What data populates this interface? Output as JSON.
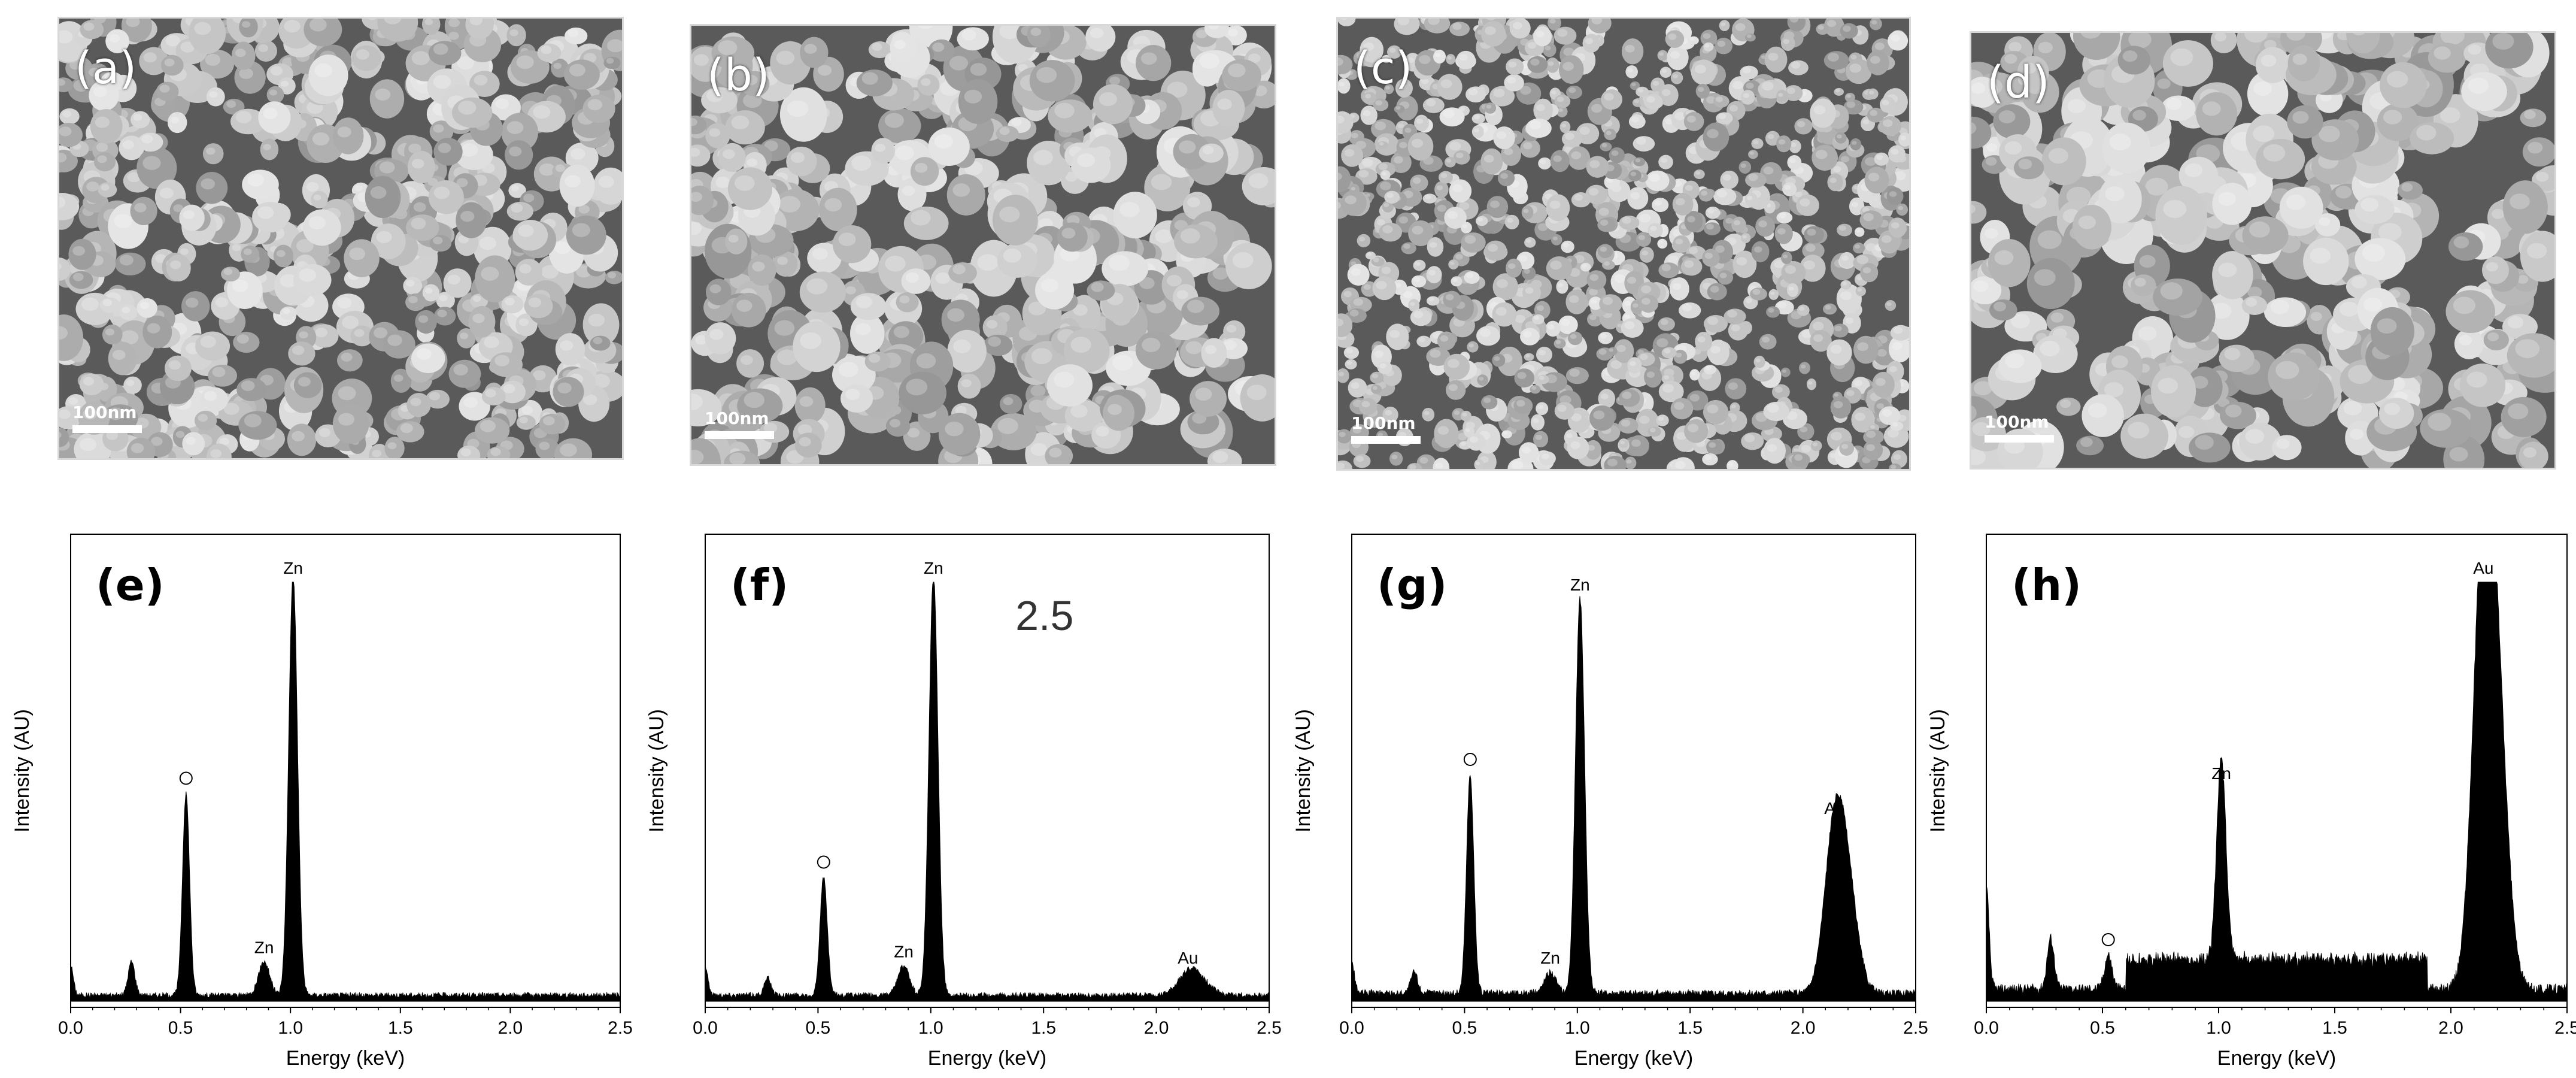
{
  "sem_panels": [
    {
      "label": "(a)",
      "scale": "100nm"
    },
    {
      "label": "(b)",
      "scale": "100nm"
    },
    {
      "label": "(c)",
      "scale": "100nm"
    },
    {
      "label": "(d)",
      "scale": "100nm"
    }
  ],
  "chart_data": [
    {
      "type": "area",
      "title": "(e)",
      "xlabel": "Energy (keV)",
      "ylabel": "Intensity (AU)",
      "xlim": [
        0,
        2.5
      ],
      "ylim": [
        0,
        100
      ],
      "xticks": [
        "0.0",
        "0.5",
        "1.0",
        "1.5",
        "2.0",
        "2.5"
      ],
      "peaks": [
        {
          "x": 0.0,
          "y": 7,
          "w": 0.012,
          "label": ""
        },
        {
          "x": 0.277,
          "y": 8,
          "w": 0.015,
          "label": ""
        },
        {
          "x": 0.525,
          "y": 48,
          "w": 0.016,
          "label": "O"
        },
        {
          "x": 0.88,
          "y": 8,
          "w": 0.025,
          "label": "Zn"
        },
        {
          "x": 1.012,
          "y": 100,
          "w": 0.02,
          "label": "Zn"
        }
      ],
      "baseline": 1.5,
      "annotation": ""
    },
    {
      "type": "area",
      "title": "(f)",
      "xlabel": "Energy (keV)",
      "ylabel": "Intensity (AU)",
      "xlim": [
        0,
        2.5
      ],
      "ylim": [
        0,
        100
      ],
      "xticks": [
        "0.0",
        "0.5",
        "1.0",
        "1.5",
        "2.0",
        "2.5"
      ],
      "peaks": [
        {
          "x": 0.0,
          "y": 7,
          "w": 0.012,
          "label": ""
        },
        {
          "x": 0.277,
          "y": 4,
          "w": 0.015,
          "label": ""
        },
        {
          "x": 0.525,
          "y": 28,
          "w": 0.016,
          "label": "O"
        },
        {
          "x": 0.88,
          "y": 7,
          "w": 0.025,
          "label": "Zn"
        },
        {
          "x": 1.012,
          "y": 100,
          "w": 0.02,
          "label": "Zn"
        },
        {
          "x": 2.14,
          "y": 5,
          "w": 0.045,
          "label": "Au"
        }
      ],
      "baseline": 1.5,
      "annotation": "2.5"
    },
    {
      "type": "area",
      "title": "(g)",
      "xlabel": "Energy (keV)",
      "ylabel": "Intensity (AU)",
      "xlim": [
        0,
        2.5
      ],
      "ylim": [
        0,
        100
      ],
      "xticks": [
        "0.0",
        "0.5",
        "1.0",
        "1.5",
        "2.0",
        "2.5"
      ],
      "peaks": [
        {
          "x": 0.0,
          "y": 7,
          "w": 0.012,
          "label": ""
        },
        {
          "x": 0.277,
          "y": 5,
          "w": 0.015,
          "label": ""
        },
        {
          "x": 0.525,
          "y": 52,
          "w": 0.016,
          "label": "O"
        },
        {
          "x": 0.88,
          "y": 5,
          "w": 0.025,
          "label": "Zn"
        },
        {
          "x": 1.012,
          "y": 94,
          "w": 0.02,
          "label": "Zn"
        },
        {
          "x": 2.14,
          "y": 37,
          "w": 0.045,
          "label": "Au"
        }
      ],
      "baseline": 2,
      "annotation": ""
    },
    {
      "type": "area",
      "title": "(h)",
      "xlabel": "Energy (keV)",
      "ylabel": "Intensity (AU)",
      "xlim": [
        0,
        2.5
      ],
      "ylim": [
        0,
        100
      ],
      "xticks": [
        "0.0",
        "0.5",
        "1.0",
        "1.5",
        "2.0",
        "2.5"
      ],
      "peaks": [
        {
          "x": 0.0,
          "y": 24,
          "w": 0.012,
          "label": ""
        },
        {
          "x": 0.277,
          "y": 12,
          "w": 0.015,
          "label": ""
        },
        {
          "x": 0.525,
          "y": 8,
          "w": 0.016,
          "label": "O"
        },
        {
          "x": 1.012,
          "y": 48,
          "w": 0.02,
          "label": "Zn"
        },
        {
          "x": 2.14,
          "y": 100,
          "w": 0.045,
          "label": "Au"
        }
      ],
      "baseline": 3,
      "annotation": ""
    }
  ]
}
